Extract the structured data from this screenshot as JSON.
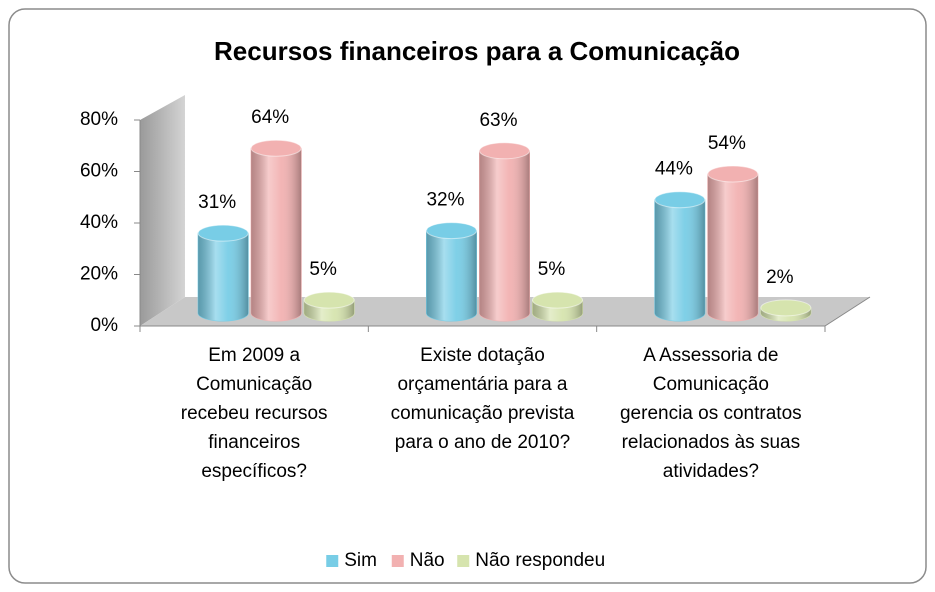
{
  "chart_data": {
    "type": "bar3d",
    "title": "Recursos financeiros para a Comunicação",
    "categories": [
      "Em 2009 a Comunicação recebeu recursos financeiros específicos?",
      "Existe dotação orçamentária para a comunicação prevista para o ano de 2010?",
      "A Assessoria de Comunicação gerencia os contratos relacionados às suas atividades?"
    ],
    "series": [
      {
        "name": "Sim",
        "color": "#78cde6",
        "values": [
          31,
          32,
          44
        ],
        "value_labels": [
          "31%",
          "32%",
          "44%"
        ]
      },
      {
        "name": "Não",
        "color": "#f2b1b1",
        "values": [
          64,
          63,
          54
        ],
        "value_labels": [
          "64%",
          "63%",
          "54%"
        ]
      },
      {
        "name": "Não respondeu",
        "color": "#d6e4ae",
        "values": [
          5,
          5,
          2
        ],
        "value_labels": [
          "5%",
          "5%",
          "2%"
        ]
      }
    ],
    "ylim": [
      0,
      80
    ],
    "yticks": [
      {
        "value": 0,
        "label": "0%"
      },
      {
        "value": 20,
        "label": "20%"
      },
      {
        "value": 40,
        "label": "40%"
      },
      {
        "value": 60,
        "label": "60%"
      },
      {
        "value": 80,
        "label": "80%"
      }
    ],
    "legend": "bottom"
  }
}
